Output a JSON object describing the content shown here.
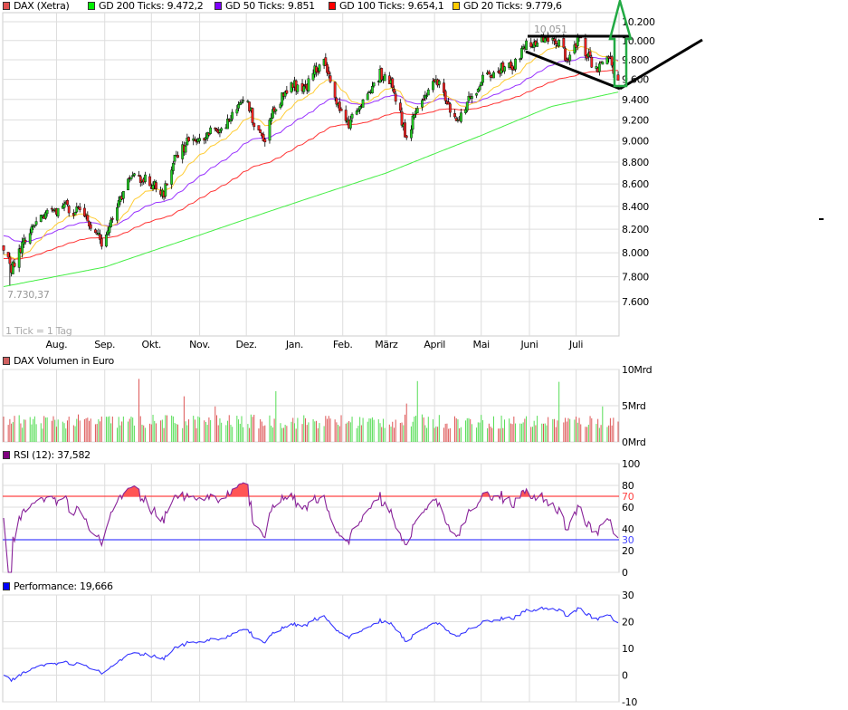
{
  "legend": [
    {
      "label": "DAX (Xetra)",
      "color": "#e05050"
    },
    {
      "label": "GD 200 Ticks: 9.472,2",
      "color": "#00ee00"
    },
    {
      "label": "GD 50 Ticks: 9.851",
      "color": "#7f00ff"
    },
    {
      "label": "GD 100 Ticks: 9.654,1",
      "color": "#ff0000"
    },
    {
      "label": "GD 20 Ticks: 9.779,6",
      "color": "#ffcc00"
    }
  ],
  "panels": {
    "volume_title": "DAX Volumen in Euro",
    "volume_color": "#d06060",
    "rsi_title": "RSI (12): 37,582",
    "rsi_color": "#800080",
    "perf_title": "Performance: 19,666",
    "perf_color": "#0000ff"
  },
  "annotations": {
    "high_label": "10.051",
    "low_label": "7.730,37",
    "tick_note": "1 Tick = 1 Tag"
  },
  "chart_data": [
    {
      "type": "candlestick",
      "title": "DAX (Xetra)",
      "scale": "log",
      "ylim": [
        7450,
        10350
      ],
      "y_ticks": [
        {
          "v": 10200,
          "l": "10.200"
        },
        {
          "v": 10000,
          "l": "10.000"
        },
        {
          "v": 9800,
          "l": "9.800"
        },
        {
          "v": 9600,
          "l": "9.600"
        },
        {
          "v": 9400,
          "l": "9.400"
        },
        {
          "v": 9200,
          "l": "9.200"
        },
        {
          "v": 9000,
          "l": "9.000"
        },
        {
          "v": 8800,
          "l": "8.800"
        },
        {
          "v": 8600,
          "l": "8.600"
        },
        {
          "v": 8400,
          "l": "8.400"
        },
        {
          "v": 8200,
          "l": "8.200"
        },
        {
          "v": 8000,
          "l": "8.000"
        },
        {
          "v": 7800,
          "l": "7.800"
        },
        {
          "v": 7600,
          "l": "7.600"
        }
      ],
      "x_range": [
        "2013-06-28",
        "2014-07-28"
      ],
      "x_ticks": [
        {
          "d": "2013-08-01",
          "l": "Aug."
        },
        {
          "d": "2013-09-01",
          "l": "Sep."
        },
        {
          "d": "2013-10-01",
          "l": "Okt."
        },
        {
          "d": "2013-11-01",
          "l": "Nov."
        },
        {
          "d": "2013-12-01",
          "l": "Dez."
        },
        {
          "d": "2014-01-01",
          "l": "Jan."
        },
        {
          "d": "2014-02-01",
          "l": "Feb."
        },
        {
          "d": "2014-03-01",
          "l": "März"
        },
        {
          "d": "2014-04-01",
          "l": "April"
        },
        {
          "d": "2014-05-01",
          "l": "Mai"
        },
        {
          "d": "2014-06-01",
          "l": "Juni"
        },
        {
          "d": "2014-07-01",
          "l": "Juli"
        }
      ],
      "close_waypoints": [
        [
          "2013-06-28",
          8020
        ],
        [
          "2013-07-03",
          7850
        ],
        [
          "2013-07-10",
          8050
        ],
        [
          "2013-07-19",
          8300
        ],
        [
          "2013-08-01",
          8350
        ],
        [
          "2013-08-06",
          8400
        ],
        [
          "2013-08-15",
          8350
        ],
        [
          "2013-08-27",
          8200
        ],
        [
          "2013-08-30",
          8100
        ],
        [
          "2013-09-04",
          8200
        ],
        [
          "2013-09-10",
          8450
        ],
        [
          "2013-09-18",
          8680
        ],
        [
          "2013-09-25",
          8650
        ],
        [
          "2013-10-02",
          8600
        ],
        [
          "2013-10-09",
          8530
        ],
        [
          "2013-10-15",
          8800
        ],
        [
          "2013-10-25",
          9000
        ],
        [
          "2013-11-07",
          9060
        ],
        [
          "2013-11-20",
          9200
        ],
        [
          "2013-12-02",
          9400
        ],
        [
          "2013-12-05",
          9200
        ],
        [
          "2013-12-13",
          9020
        ],
        [
          "2013-12-19",
          9300
        ],
        [
          "2013-12-30",
          9550
        ],
        [
          "2014-01-08",
          9500
        ],
        [
          "2014-01-15",
          9720
        ],
        [
          "2014-01-20",
          9750
        ],
        [
          "2014-01-27",
          9400
        ],
        [
          "2014-02-04",
          9150
        ],
        [
          "2014-02-10",
          9300
        ],
        [
          "2014-02-25",
          9650
        ],
        [
          "2014-03-05",
          9550
        ],
        [
          "2014-03-14",
          9020
        ],
        [
          "2014-03-20",
          9300
        ],
        [
          "2014-04-02",
          9620
        ],
        [
          "2014-04-11",
          9300
        ],
        [
          "2014-04-15",
          9200
        ],
        [
          "2014-04-25",
          9450
        ],
        [
          "2014-05-02",
          9600
        ],
        [
          "2014-05-13",
          9700
        ],
        [
          "2014-05-22",
          9750
        ],
        [
          "2014-05-30",
          9950
        ],
        [
          "2014-06-06",
          9990
        ],
        [
          "2014-06-10",
          10020
        ],
        [
          "2014-06-20",
          9950
        ],
        [
          "2014-06-26",
          9800
        ],
        [
          "2014-07-03",
          10030
        ],
        [
          "2014-07-10",
          9800
        ],
        [
          "2014-07-15",
          9700
        ],
        [
          "2014-07-18",
          9750
        ],
        [
          "2014-07-22",
          9820
        ],
        [
          "2014-07-28",
          9590
        ]
      ],
      "gd200_waypoints": [
        [
          "2013-06-28",
          7720
        ],
        [
          "2013-09-01",
          7880
        ],
        [
          "2013-11-01",
          8150
        ],
        [
          "2014-01-01",
          8430
        ],
        [
          "2014-03-01",
          8700
        ],
        [
          "2014-05-01",
          9050
        ],
        [
          "2014-06-15",
          9330
        ],
        [
          "2014-07-28",
          9472.2
        ]
      ],
      "moving_averages": [
        {
          "name": "GD 20 Ticks",
          "period": 20,
          "last": 9779.6
        },
        {
          "name": "GD 50 Ticks",
          "period": 50,
          "last": 9851
        },
        {
          "name": "GD 100 Ticks",
          "period": 100,
          "last": 9654.1
        },
        {
          "name": "GD 200 Ticks",
          "period": 200,
          "last": 9472.2
        }
      ],
      "high": 10051,
      "low": 7730.37
    },
    {
      "type": "bar",
      "title": "DAX Volumen in Euro",
      "unit": "Mrd",
      "ylim": [
        0,
        10
      ],
      "y_ticks": [
        {
          "v": 10,
          "l": "10Mrd"
        },
        {
          "v": 5,
          "l": "5Mrd"
        },
        {
          "v": 0,
          "l": "0Mrd"
        }
      ],
      "typical_range": [
        1.8,
        3.8
      ],
      "spikes": [
        [
          "2013-09-23",
          8.7
        ],
        [
          "2013-10-22",
          6.3
        ],
        [
          "2013-11-11",
          4.9
        ],
        [
          "2013-12-20",
          7.0
        ],
        [
          "2014-03-14",
          5.3
        ],
        [
          "2014-03-21",
          8.4
        ],
        [
          "2014-06-20",
          8.3
        ],
        [
          "2014-07-18",
          4.9
        ]
      ]
    },
    {
      "type": "line",
      "title": "RSI (12): 37,582",
      "period": 12,
      "ylim": [
        0,
        100
      ],
      "y_ticks": [
        {
          "v": 100,
          "l": "100"
        },
        {
          "v": 80,
          "l": "80"
        },
        {
          "v": 60,
          "l": "60"
        },
        {
          "v": 40,
          "l": "40"
        },
        {
          "v": 20,
          "l": "20"
        },
        {
          "v": 0,
          "l": "0"
        }
      ],
      "overbought": {
        "v": 70,
        "l": "70",
        "color": "#ff4444"
      },
      "oversold": {
        "v": 30,
        "l": "30",
        "color": "#4444ff"
      },
      "last": 37.582
    },
    {
      "type": "line",
      "title": "Performance: 19,666",
      "ylim": [
        -10,
        30
      ],
      "y_ticks": [
        {
          "v": 30,
          "l": "30"
        },
        {
          "v": 20,
          "l": "20"
        },
        {
          "v": 10,
          "l": "10"
        },
        {
          "v": 0,
          "l": "0"
        },
        {
          "v": -10,
          "l": "-10"
        }
      ],
      "last": 19.666
    }
  ]
}
